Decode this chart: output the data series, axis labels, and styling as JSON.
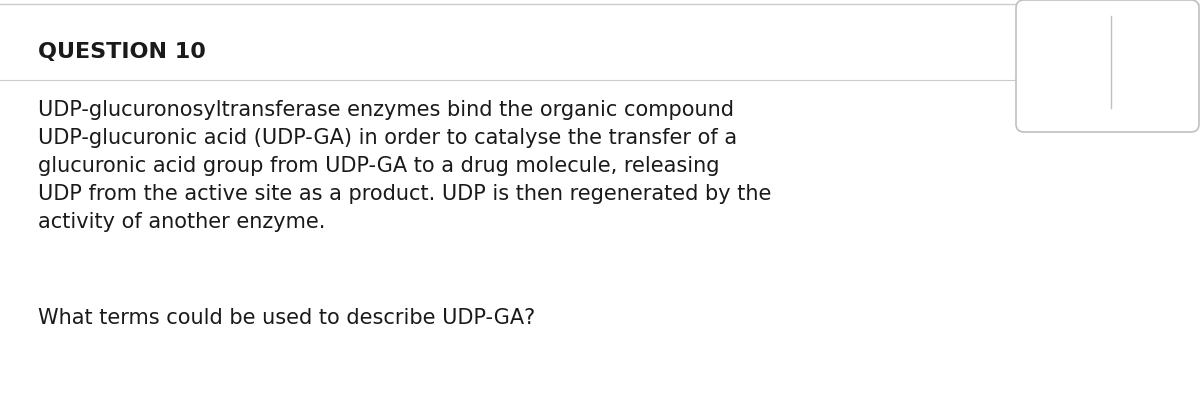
{
  "title": "QUESTION 10",
  "background_color": "#ffffff",
  "title_color": "#1a1a1a",
  "text_color": "#1a1a1a",
  "body_text": "UDP-glucuronosyltransferase enzymes bind the organic compound\nUDP-glucuronic acid (UDP-GA) in order to catalyse the transfer of a\nglucuronic acid group from UDP-GA to a drug molecule, releasing\nUDP from the active site as a product. UDP is then regenerated by the\nactivity of another enzyme.",
  "question_text": "What terms could be used to describe UDP-GA?",
  "title_fontsize": 16,
  "body_fontsize": 15,
  "question_fontsize": 15,
  "top_border_color": "#cccccc",
  "box_border_color": "#c0c0c0",
  "divider_color": "#c0c0c0"
}
